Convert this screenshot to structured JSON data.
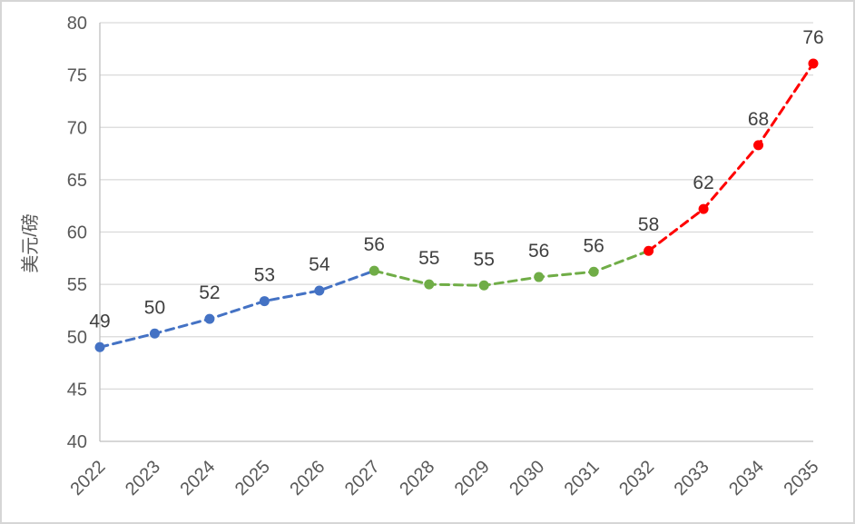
{
  "chart_data": {
    "type": "line",
    "title": "",
    "xlabel": "",
    "ylabel": "美元/磅",
    "categories": [
      "2022",
      "2023",
      "2024",
      "2025",
      "2026",
      "2027",
      "2028",
      "2029",
      "2030",
      "2031",
      "2032",
      "2033",
      "2034",
      "2035"
    ],
    "values": [
      49.0,
      50.3,
      51.7,
      53.4,
      54.4,
      56.3,
      55.0,
      54.9,
      55.7,
      56.2,
      58.2,
      62.2,
      68.3,
      76.1
    ],
    "point_labels": [
      "49",
      "50",
      "52",
      "53",
      "54",
      "56",
      "55",
      "55",
      "56",
      "56",
      "58",
      "62",
      "68",
      "76"
    ],
    "segments": [
      {
        "name": "blue-segment",
        "color": "#4472C4",
        "from": 0,
        "to": 5
      },
      {
        "name": "green-segment",
        "color": "#70AD47",
        "from": 5,
        "to": 10
      },
      {
        "name": "red-segment",
        "color": "#FF0000",
        "from": 10,
        "to": 13
      }
    ],
    "marker_colors": [
      "#4472C4",
      "#4472C4",
      "#4472C4",
      "#4472C4",
      "#4472C4",
      "#70AD47",
      "#70AD47",
      "#70AD47",
      "#70AD47",
      "#70AD47",
      "#FF0000",
      "#FF0000",
      "#FF0000",
      "#FF0000"
    ],
    "line_style": "dashed",
    "grid": true,
    "legend": "none",
    "y_axis": {
      "min": 40,
      "max": 80,
      "step": 5,
      "tick_labels": [
        "40",
        "45",
        "50",
        "55",
        "60",
        "65",
        "70",
        "75",
        "80"
      ]
    },
    "colors": {
      "gridline": "#D9D9D9",
      "axis_line": "#BFBFBF",
      "tick_text": "#595959",
      "data_label_text": "#404040",
      "background": "#FFFFFF"
    }
  }
}
